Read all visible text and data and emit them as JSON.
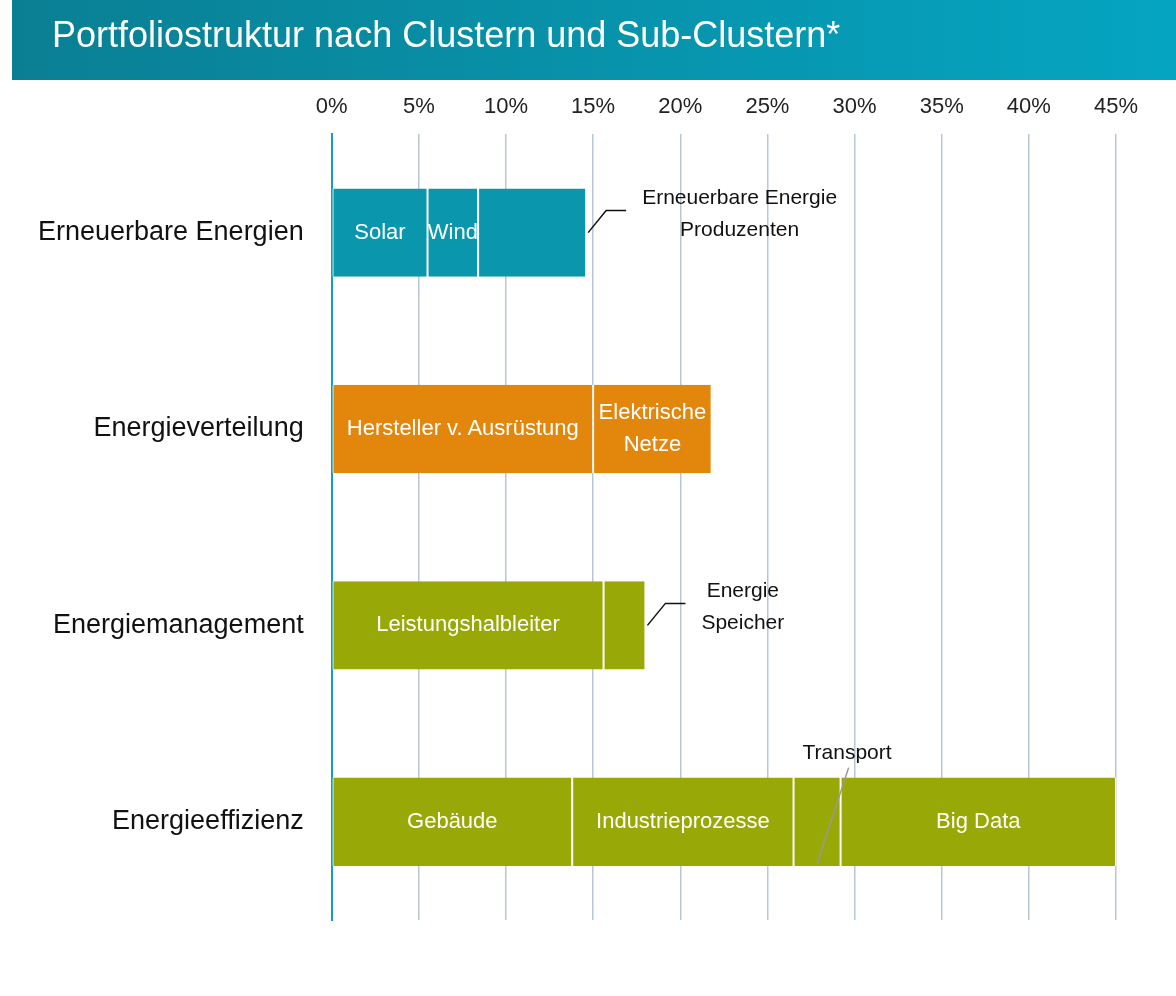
{
  "chart_data": {
    "type": "bar",
    "orientation": "horizontal",
    "stacked": true,
    "title": "Portfoliostruktur nach Clustern und Sub-Clustern*",
    "categories": [
      "Erneuerbare Energien",
      "Energieverteilung",
      "Energiemanagement",
      "Energieeffizienz"
    ],
    "series": [
      {
        "name": "Solar",
        "color": "#0a97ae",
        "values": [
          5.5,
          null,
          null,
          null
        ]
      },
      {
        "name": "Wind",
        "color": "#0a97ae",
        "values": [
          2.9,
          null,
          null,
          null
        ]
      },
      {
        "name": "Erneuerbare Energie Produzenten",
        "color": "#0a97ae",
        "values": [
          6.2,
          null,
          null,
          null
        ]
      },
      {
        "name": "Hersteller v. Ausrüstung",
        "color": "#e2870c",
        "values": [
          null,
          15.0,
          null,
          null
        ]
      },
      {
        "name": "Elektrische Netze",
        "color": "#e2870c",
        "values": [
          null,
          6.8,
          null,
          null
        ]
      },
      {
        "name": "Leistungshalbleiter",
        "color": "#98a806",
        "values": [
          null,
          null,
          15.6,
          null
        ]
      },
      {
        "name": "Energie Speicher",
        "color": "#98a806",
        "values": [
          null,
          null,
          2.4,
          null
        ]
      },
      {
        "name": "Gebäude",
        "color": "#98a806",
        "values": [
          null,
          null,
          null,
          13.8
        ]
      },
      {
        "name": "Industrieprozesse",
        "color": "#98a806",
        "values": [
          null,
          null,
          null,
          12.7
        ]
      },
      {
        "name": "Transport",
        "color": "#98a806",
        "values": [
          null,
          null,
          null,
          2.7
        ]
      },
      {
        "name": "Big Data",
        "color": "#98a806",
        "values": [
          null,
          null,
          null,
          15.8
        ]
      }
    ],
    "xlim": [
      0,
      45
    ],
    "xticks": [
      {
        "value": 0,
        "label": "0%"
      },
      {
        "value": 5,
        "label": "5%"
      },
      {
        "value": 10,
        "label": "10%"
      },
      {
        "value": 15,
        "label": "15%"
      },
      {
        "value": 20,
        "label": "20%"
      },
      {
        "value": 25,
        "label": "25%"
      },
      {
        "value": 30,
        "label": "30%"
      },
      {
        "value": 35,
        "label": "35%"
      },
      {
        "value": 40,
        "label": "40%"
      },
      {
        "value": 45,
        "label": "45%"
      }
    ],
    "grid": "x",
    "legend": false
  }
}
